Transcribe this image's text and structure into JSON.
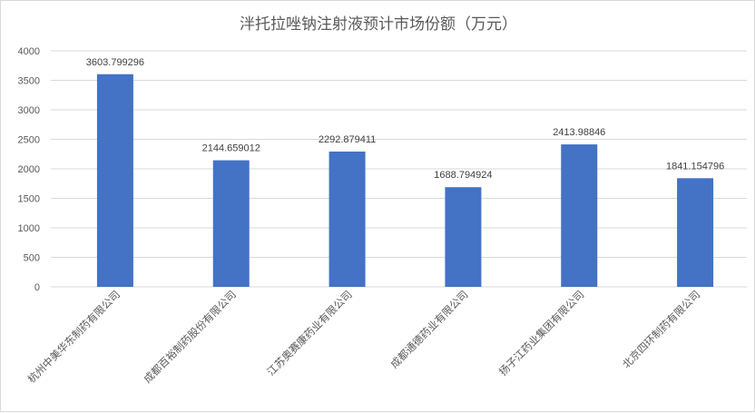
{
  "chart_data": {
    "type": "bar",
    "title": "泮托拉唑钠注射液预计市场份额（万元）",
    "categories": [
      "杭州中美华东制药有限公司",
      "成都百裕制药股份有限公司",
      "江苏奥赛康药业有限公司",
      "成都通德药业有限公司",
      "扬子江药业集团有限公司",
      "北京四环制药有限公司"
    ],
    "values": [
      3603.799296,
      2144.659012,
      2292.879411,
      1688.794924,
      2413.98846,
      1841.154796
    ],
    "value_labels": [
      "3603.799296",
      "2144.659012",
      "2292.879411",
      "1688.794924",
      "2413.98846",
      "1841.154796"
    ],
    "ylim": [
      0,
      4000
    ],
    "yticks": [
      "0",
      "500",
      "1000",
      "1500",
      "2000",
      "2500",
      "3000",
      "3500",
      "4000"
    ],
    "grid": true,
    "bar_color": "#4472c4",
    "grid_color": "#d9d9d9",
    "xlabel": "",
    "ylabel": ""
  }
}
